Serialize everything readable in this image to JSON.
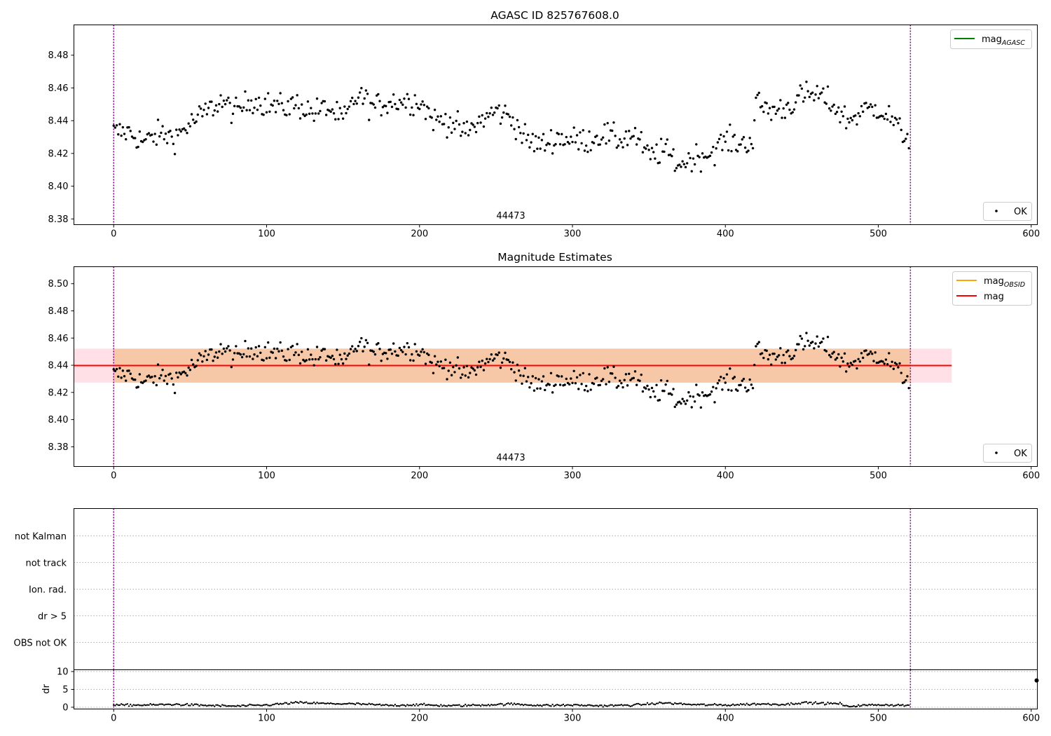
{
  "chart_data": [
    {
      "type": "scatter",
      "title": "AGASC ID 825767608.0",
      "xlabel": "",
      "ylabel": "",
      "xlim": [
        -26,
        604
      ],
      "ylim": [
        8.3765,
        8.4985
      ],
      "x_ticks": [
        0,
        100,
        200,
        300,
        400,
        500,
        600
      ],
      "y_ticks": [
        8.38,
        8.4,
        8.42,
        8.44,
        8.46,
        8.48
      ],
      "grid": false,
      "obs_boundaries": [
        0,
        521
      ],
      "obsid_labels": [
        {
          "x": 260,
          "text": "44473"
        }
      ],
      "legend_lines": [
        {
          "name": "mag",
          "sub": "AGASC",
          "color": "#008000",
          "placement": "upper right"
        }
      ],
      "legend_points": [
        {
          "name": "OK",
          "color": "#000000",
          "placement": "lower right"
        }
      ],
      "series": [
        {
          "name": "OK",
          "count": 521,
          "color": "#000000",
          "anchors": [
            [
              0,
              8.433
            ],
            [
              10,
              8.433
            ],
            [
              20,
              8.427
            ],
            [
              30,
              8.432
            ],
            [
              40,
              8.43
            ],
            [
              50,
              8.438
            ],
            [
              60,
              8.445
            ],
            [
              70,
              8.452
            ],
            [
              80,
              8.445
            ],
            [
              90,
              8.453
            ],
            [
              100,
              8.45
            ],
            [
              110,
              8.448
            ],
            [
              120,
              8.45
            ],
            [
              130,
              8.445
            ],
            [
              140,
              8.448
            ],
            [
              150,
              8.44
            ],
            [
              160,
              8.456
            ],
            [
              170,
              8.448
            ],
            [
              180,
              8.452
            ],
            [
              190,
              8.452
            ],
            [
              200,
              8.452
            ],
            [
              210,
              8.44
            ],
            [
              220,
              8.44
            ],
            [
              230,
              8.432
            ],
            [
              240,
              8.44
            ],
            [
              250,
              8.446
            ],
            [
              260,
              8.442
            ],
            [
              270,
              8.428
            ],
            [
              280,
              8.425
            ],
            [
              290,
              8.43
            ],
            [
              300,
              8.428
            ],
            [
              310,
              8.428
            ],
            [
              320,
              8.432
            ],
            [
              330,
              8.428
            ],
            [
              340,
              8.432
            ],
            [
              350,
              8.418
            ],
            [
              360,
              8.422
            ],
            [
              370,
              8.413
            ],
            [
              380,
              8.418
            ],
            [
              390,
              8.42
            ],
            [
              400,
              8.428
            ],
            [
              410,
              8.426
            ],
            [
              418,
              8.428
            ],
            [
              420,
              8.451
            ],
            [
              430,
              8.446
            ],
            [
              440,
              8.448
            ],
            [
              450,
              8.455
            ],
            [
              460,
              8.456
            ],
            [
              470,
              8.45
            ],
            [
              480,
              8.44
            ],
            [
              490,
              8.446
            ],
            [
              500,
              8.448
            ],
            [
              510,
              8.44
            ],
            [
              515,
              8.432
            ],
            [
              521,
              8.43
            ]
          ],
          "noise": 0.004
        }
      ]
    },
    {
      "type": "scatter",
      "title": "Magnitude Estimates",
      "xlabel": "",
      "ylabel": "",
      "xlim": [
        -26,
        604
      ],
      "ylim": [
        8.3655,
        8.5125
      ],
      "x_ticks": [
        0,
        100,
        200,
        300,
        400,
        500,
        600
      ],
      "y_ticks": [
        8.38,
        8.4,
        8.42,
        8.44,
        8.46,
        8.48,
        8.5
      ],
      "grid": false,
      "obs_boundaries": [
        0,
        521
      ],
      "obsid_labels": [
        {
          "x": 260,
          "text": "44473"
        }
      ],
      "mag_mean": 8.4398,
      "mag_band": [
        8.4272,
        8.4522
      ],
      "mag_line_x": [
        -26,
        548
      ],
      "band_colors": {
        "obsid": "#f7c8a8",
        "mag": "#ffe0e6"
      },
      "legend_lines": [
        {
          "name": "mag",
          "sub": "OBSID",
          "color": "#ffa500",
          "placement": "upper right"
        },
        {
          "name": "mag",
          "sub": "",
          "color": "#ff0000",
          "placement": "upper right"
        }
      ],
      "legend_points": [
        {
          "name": "OK",
          "color": "#000000",
          "placement": "lower right"
        }
      ]
    },
    {
      "type": "scatter",
      "title": "",
      "xlabel": "",
      "ylabel": "",
      "xlim": [
        -26,
        604
      ],
      "categories": [
        "OBS not OK",
        "dr > 5",
        "Ion. rad.",
        "not track",
        "not Kalman"
      ],
      "flag_points": [],
      "grid": "horizontal dotted",
      "obs_boundaries": [
        0,
        521
      ]
    },
    {
      "type": "scatter",
      "title": "",
      "xlabel": "",
      "ylabel": "dr",
      "xlim": [
        -26,
        604
      ],
      "ylim": [
        -0.5,
        10.5
      ],
      "x_ticks": [
        0,
        100,
        200,
        300,
        400,
        500,
        600
      ],
      "y_ticks": [
        0,
        5,
        10
      ],
      "grid": "horizontal dotted",
      "obs_boundaries": [
        0,
        521
      ],
      "extra_point": {
        "x": 604,
        "y": 7.5
      },
      "series": [
        {
          "name": "dr",
          "count": 521,
          "color": "#000000",
          "anchors": [
            [
              0,
              0.6
            ],
            [
              20,
              0.6
            ],
            [
              40,
              0.8
            ],
            [
              60,
              0.5
            ],
            [
              80,
              0.3
            ],
            [
              100,
              0.6
            ],
            [
              120,
              1.3
            ],
            [
              140,
              1.0
            ],
            [
              160,
              0.9
            ],
            [
              180,
              0.5
            ],
            [
              200,
              0.7
            ],
            [
              220,
              0.4
            ],
            [
              240,
              0.6
            ],
            [
              260,
              0.9
            ],
            [
              280,
              0.5
            ],
            [
              300,
              0.6
            ],
            [
              320,
              0.4
            ],
            [
              340,
              0.6
            ],
            [
              360,
              1.2
            ],
            [
              380,
              0.7
            ],
            [
              400,
              0.6
            ],
            [
              420,
              0.9
            ],
            [
              440,
              0.8
            ],
            [
              450,
              1.3
            ],
            [
              470,
              1.0
            ],
            [
              476,
              1.0
            ],
            [
              478,
              0.2
            ],
            [
              490,
              0.5
            ],
            [
              500,
              0.7
            ],
            [
              510,
              0.6
            ],
            [
              521,
              0.5
            ]
          ],
          "noise": 0.15
        }
      ]
    }
  ]
}
